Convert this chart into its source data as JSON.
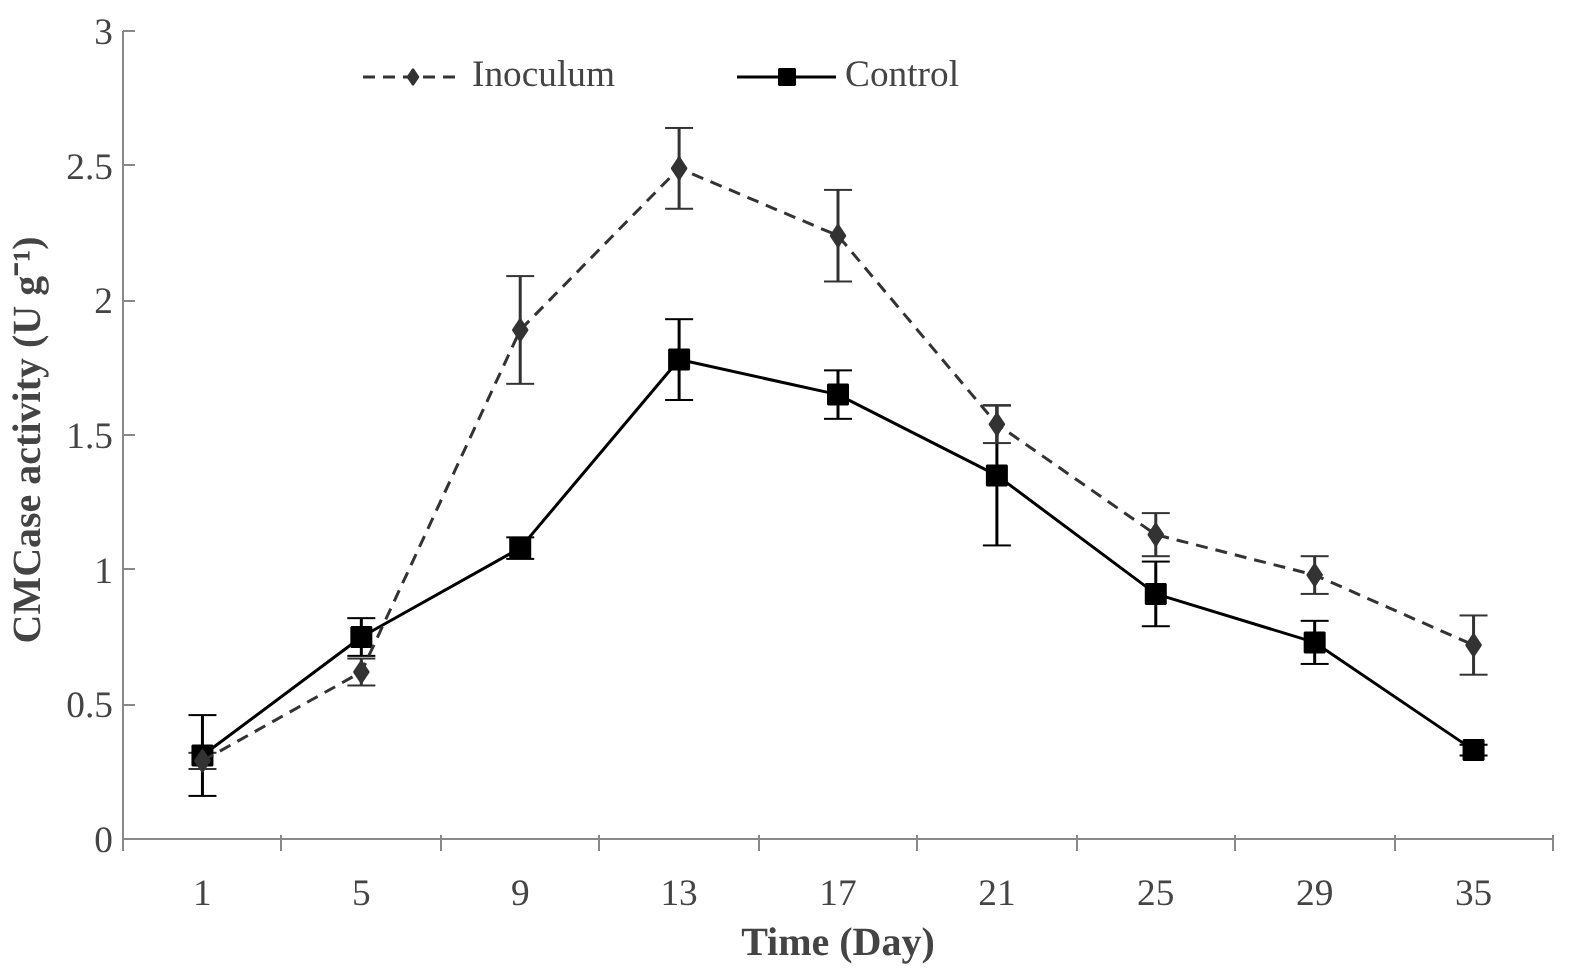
{
  "chart_data": {
    "type": "line",
    "xlabel": "Time (Day)",
    "ylabel": "CMCase activity  (U g⁻¹)",
    "categories": [
      "1",
      "5",
      "9",
      "13",
      "17",
      "21",
      "25",
      "29",
      "35"
    ],
    "ylim": [
      0,
      3
    ],
    "yticks": [
      0,
      0.5,
      1,
      1.5,
      2,
      2.5,
      3
    ],
    "grid": false,
    "legend": "top",
    "series": [
      {
        "name": "Inoculum",
        "color": "#333333",
        "marker": "diamond",
        "line_style": "dashed",
        "values": [
          0.29,
          0.62,
          1.89,
          2.49,
          2.24,
          1.54,
          1.13,
          0.98,
          0.72
        ],
        "errors": [
          0.03,
          0.05,
          0.2,
          0.15,
          0.17,
          0.07,
          0.08,
          0.07,
          0.11
        ]
      },
      {
        "name": "Control",
        "color": "#000000",
        "marker": "square",
        "line_style": "solid",
        "values": [
          0.31,
          0.75,
          1.08,
          1.78,
          1.65,
          1.35,
          0.91,
          0.73,
          0.33
        ],
        "errors": [
          0.15,
          0.07,
          0.04,
          0.15,
          0.09,
          0.26,
          0.12,
          0.08,
          0.02
        ]
      }
    ]
  }
}
